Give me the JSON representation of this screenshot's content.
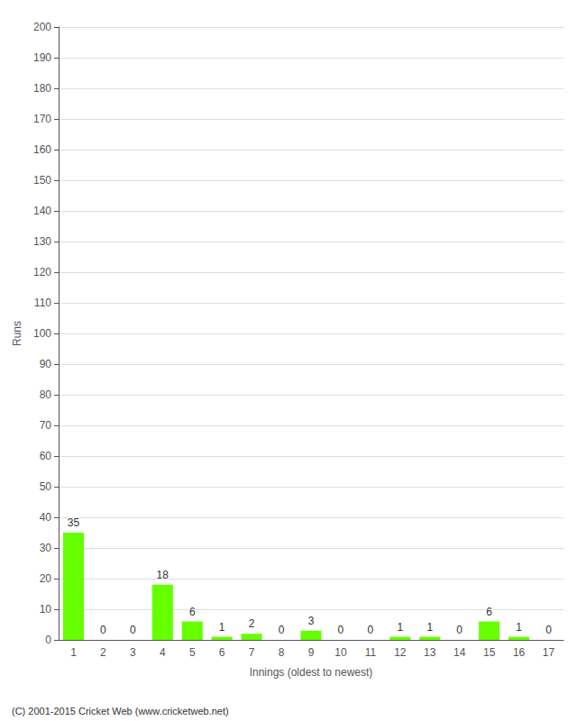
{
  "chart_data": {
    "type": "bar",
    "xlabel": "Innings (oldest to newest)",
    "ylabel": "Runs",
    "categories": [
      1,
      2,
      3,
      4,
      5,
      6,
      7,
      8,
      9,
      10,
      11,
      12,
      13,
      14,
      15,
      16,
      17
    ],
    "values": [
      35,
      0,
      0,
      18,
      6,
      1,
      2,
      0,
      3,
      0,
      0,
      1,
      1,
      0,
      6,
      1,
      0
    ],
    "color": "#66ff00",
    "ylim": [
      0,
      200
    ],
    "yticks": [
      0,
      10,
      20,
      30,
      40,
      50,
      60,
      70,
      80,
      90,
      100,
      110,
      120,
      130,
      140,
      150,
      160,
      170,
      180,
      190,
      200
    ],
    "grid": true,
    "data_labels": true,
    "annotation": "(C) 2001-2015 Cricket Web (www.cricketweb.net)"
  }
}
